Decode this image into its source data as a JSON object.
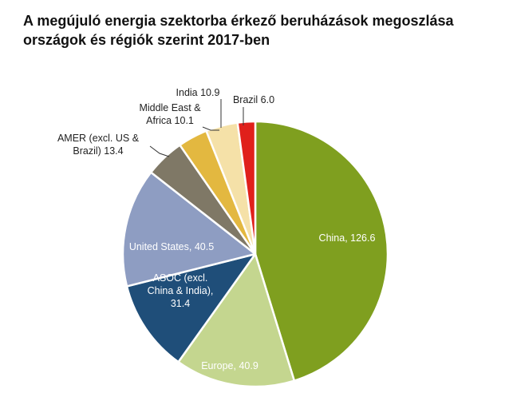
{
  "title_lines": [
    "A megújuló energia szektorba érkező beruházások megoszlása",
    "országok és régiók szerint 2017-ben"
  ],
  "chart_data": {
    "type": "pie",
    "title": "A megújuló energia szektorba érkező beruházások megoszlása országok és régiók szerint 2017-ben",
    "slices": [
      {
        "name": "China",
        "value": 126.6,
        "color": "#7f9f1f",
        "label_lines": [
          "China, 126.6"
        ],
        "label_color": "#ffffff"
      },
      {
        "name": "Europe",
        "value": 40.9,
        "color": "#c4d68f",
        "label_lines": [
          "Europe, 40.9"
        ],
        "label_color": "#ffffff"
      },
      {
        "name": "ASOC (excl. China & India)",
        "value": 31.4,
        "color": "#1f4e79",
        "label_lines": [
          "ASOC (excl.",
          "China & India),",
          "31.4"
        ],
        "label_color": "#ffffff"
      },
      {
        "name": "United States",
        "value": 40.5,
        "color": "#8e9dc2",
        "label_lines": [
          "United States, 40.5"
        ],
        "label_color": "#ffffff"
      },
      {
        "name": "AMER (excl. US & Brazil)",
        "value": 13.4,
        "color": "#7f7866",
        "label_lines": [
          "AMER (excl. US &",
          "Brazil) 13.4"
        ],
        "label_color": "#222222"
      },
      {
        "name": "Middle East & Africa",
        "value": 10.1,
        "color": "#e3b840",
        "label_lines": [
          "Middle East &",
          "Africa 10.1"
        ],
        "label_color": "#222222"
      },
      {
        "name": "India",
        "value": 10.9,
        "color": "#f5e1a8",
        "label_lines": [
          "India 10.9"
        ],
        "label_color": "#222222"
      },
      {
        "name": "Brazil",
        "value": 6.0,
        "color": "#e0201b",
        "label_lines": [
          "Brazil 6.0"
        ],
        "label_color": "#222222"
      }
    ]
  }
}
